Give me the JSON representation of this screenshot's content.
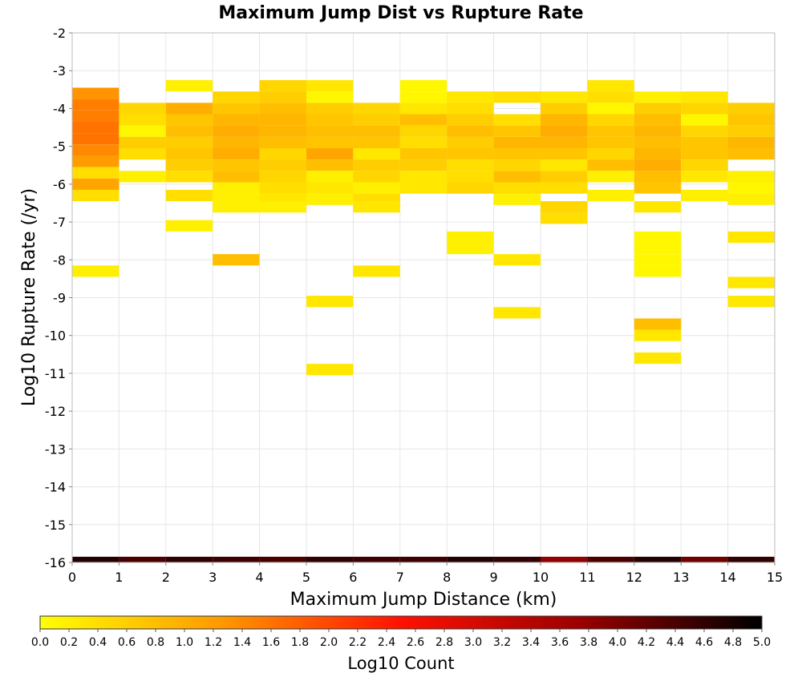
{
  "chart_data": {
    "type": "heatmap",
    "title": "Maximum Jump Dist vs Rupture Rate",
    "xlabel": "Maximum Jump Distance (km)",
    "ylabel": "Log10 Rupture Rate (/yr)",
    "xlim": [
      0,
      15
    ],
    "ylim": [
      -16,
      -2
    ],
    "x_ticks": [
      "0",
      "1",
      "2",
      "3",
      "4",
      "5",
      "6",
      "7",
      "8",
      "9",
      "10",
      "11",
      "12",
      "13",
      "14",
      "15"
    ],
    "y_ticks": [
      "-2",
      "-3",
      "-4",
      "-5",
      "-6",
      "-7",
      "-8",
      "-9",
      "-10",
      "-11",
      "-12",
      "-13",
      "-14",
      "-15",
      "-16"
    ],
    "grid": true,
    "colorbar": {
      "label": "Log10 Count",
      "min": 0.0,
      "max": 5.0,
      "ticks": [
        "0.0",
        "0.2",
        "0.4",
        "0.6",
        "0.8",
        "1.0",
        "1.2",
        "1.4",
        "1.6",
        "1.8",
        "2.0",
        "2.2",
        "2.4",
        "2.6",
        "2.8",
        "3.0",
        "3.2",
        "3.4",
        "3.6",
        "3.8",
        "4.0",
        "4.2",
        "4.4",
        "4.6",
        "4.8",
        "5.0"
      ],
      "colors": [
        "#ffff00",
        "#ff9900",
        "#ff1100",
        "#990000",
        "#000000"
      ],
      "placement": "bottom"
    },
    "y_bin_size": 0.3,
    "columns": [
      {
        "x": 0,
        "cells": [
          [
            -3.6,
            1.3
          ],
          [
            -3.9,
            1.5
          ],
          [
            -4.2,
            1.5
          ],
          [
            -4.5,
            1.6
          ],
          [
            -4.8,
            1.6
          ],
          [
            -5.1,
            1.4
          ],
          [
            -5.4,
            1.2
          ],
          [
            -5.7,
            0.4
          ],
          [
            -6.0,
            1.1
          ],
          [
            -6.3,
            0.4
          ],
          [
            -8.3,
            0.2
          ],
          [
            -16,
            4.7
          ]
        ]
      },
      {
        "x": 1,
        "cells": [
          [
            -4.0,
            0.5
          ],
          [
            -4.3,
            0.4
          ],
          [
            -4.6,
            0.1
          ],
          [
            -4.9,
            0.6
          ],
          [
            -5.2,
            0.4
          ],
          [
            -5.8,
            0.2
          ],
          [
            -16,
            4.4
          ]
        ]
      },
      {
        "x": 2,
        "cells": [
          [
            -3.4,
            0.2
          ],
          [
            -4.0,
            1.0
          ],
          [
            -4.3,
            0.7
          ],
          [
            -4.6,
            0.8
          ],
          [
            -4.9,
            0.6
          ],
          [
            -5.2,
            0.7
          ],
          [
            -5.5,
            0.6
          ],
          [
            -5.8,
            0.4
          ],
          [
            -6.3,
            0.4
          ],
          [
            -7.1,
            0.2
          ],
          [
            -16,
            4.6
          ]
        ]
      },
      {
        "x": 3,
        "cells": [
          [
            -3.7,
            0.5
          ],
          [
            -4.0,
            0.7
          ],
          [
            -4.3,
            0.9
          ],
          [
            -4.6,
            1.0
          ],
          [
            -4.9,
            0.9
          ],
          [
            -5.2,
            1.0
          ],
          [
            -5.5,
            0.7
          ],
          [
            -5.8,
            0.8
          ],
          [
            -6.1,
            0.2
          ],
          [
            -6.4,
            0.2
          ],
          [
            -6.6,
            0.2
          ],
          [
            -8.0,
            0.8
          ],
          [
            -16,
            4.5
          ]
        ]
      },
      {
        "x": 4,
        "cells": [
          [
            -3.4,
            0.5
          ],
          [
            -3.7,
            0.6
          ],
          [
            -4.0,
            0.8
          ],
          [
            -4.3,
            0.9
          ],
          [
            -4.6,
            0.9
          ],
          [
            -4.9,
            0.8
          ],
          [
            -5.2,
            0.5
          ],
          [
            -5.5,
            0.6
          ],
          [
            -5.8,
            0.5
          ],
          [
            -6.1,
            0.4
          ],
          [
            -6.4,
            0.3
          ],
          [
            -6.6,
            0.2
          ],
          [
            -16,
            4.4
          ]
        ]
      },
      {
        "x": 5,
        "cells": [
          [
            -3.4,
            0.3
          ],
          [
            -3.7,
            0.1
          ],
          [
            -4.0,
            0.6
          ],
          [
            -4.3,
            0.7
          ],
          [
            -4.6,
            0.8
          ],
          [
            -4.9,
            0.7
          ],
          [
            -5.2,
            1.1
          ],
          [
            -5.5,
            0.8
          ],
          [
            -5.8,
            0.2
          ],
          [
            -6.1,
            0.3
          ],
          [
            -6.4,
            0.2
          ],
          [
            -9.1,
            0.3
          ],
          [
            -10.9,
            0.3
          ],
          [
            -16,
            4.6
          ]
        ]
      },
      {
        "x": 6,
        "cells": [
          [
            -4.0,
            0.5
          ],
          [
            -4.3,
            0.6
          ],
          [
            -4.6,
            0.8
          ],
          [
            -4.9,
            0.7
          ],
          [
            -5.2,
            0.3
          ],
          [
            -5.5,
            0.6
          ],
          [
            -5.8,
            0.5
          ],
          [
            -6.1,
            0.2
          ],
          [
            -6.4,
            0.4
          ],
          [
            -6.6,
            0.3
          ],
          [
            -8.3,
            0.3
          ],
          [
            -16,
            4.5
          ]
        ]
      },
      {
        "x": 7,
        "cells": [
          [
            -3.4,
            0.1
          ],
          [
            -3.7,
            0.1
          ],
          [
            -4.0,
            0.3
          ],
          [
            -4.3,
            0.8
          ],
          [
            -4.6,
            0.5
          ],
          [
            -4.9,
            0.4
          ],
          [
            -5.2,
            0.7
          ],
          [
            -5.5,
            0.6
          ],
          [
            -5.8,
            0.3
          ],
          [
            -6.1,
            0.3
          ],
          [
            -16,
            4.5
          ]
        ]
      },
      {
        "x": 8,
        "cells": [
          [
            -3.7,
            0.3
          ],
          [
            -4.0,
            0.4
          ],
          [
            -4.3,
            0.6
          ],
          [
            -4.6,
            0.8
          ],
          [
            -4.9,
            0.6
          ],
          [
            -5.2,
            0.7
          ],
          [
            -5.5,
            0.4
          ],
          [
            -5.8,
            0.4
          ],
          [
            -6.1,
            0.5
          ],
          [
            -7.4,
            0.2
          ],
          [
            -7.7,
            0.2
          ],
          [
            -16,
            4.7
          ]
        ]
      },
      {
        "x": 9,
        "cells": [
          [
            -3.7,
            0.4
          ],
          [
            -4.3,
            0.4
          ],
          [
            -4.6,
            0.7
          ],
          [
            -4.9,
            0.9
          ],
          [
            -5.2,
            0.7
          ],
          [
            -5.5,
            0.5
          ],
          [
            -5.8,
            0.8
          ],
          [
            -6.1,
            0.4
          ],
          [
            -6.4,
            0.2
          ],
          [
            -8.0,
            0.3
          ],
          [
            -9.4,
            0.3
          ],
          [
            -16,
            4.6
          ]
        ]
      },
      {
        "x": 10,
        "cells": [
          [
            -3.7,
            0.3
          ],
          [
            -4.0,
            0.6
          ],
          [
            -4.3,
            0.9
          ],
          [
            -4.6,
            1.0
          ],
          [
            -4.9,
            0.9
          ],
          [
            -5.2,
            0.7
          ],
          [
            -5.5,
            0.3
          ],
          [
            -5.8,
            0.6
          ],
          [
            -6.1,
            0.4
          ],
          [
            -6.6,
            0.5
          ],
          [
            -6.9,
            0.4
          ],
          [
            -16,
            3.8
          ]
        ]
      },
      {
        "x": 11,
        "cells": [
          [
            -3.4,
            0.3
          ],
          [
            -3.7,
            0.4
          ],
          [
            -4.0,
            0.1
          ],
          [
            -4.3,
            0.5
          ],
          [
            -4.6,
            0.7
          ],
          [
            -4.9,
            0.7
          ],
          [
            -5.2,
            0.5
          ],
          [
            -5.5,
            0.8
          ],
          [
            -5.8,
            0.2
          ],
          [
            -6.3,
            0.2
          ],
          [
            -16,
            4.4
          ]
        ]
      },
      {
        "x": 12,
        "cells": [
          [
            -3.7,
            0.2
          ],
          [
            -4.0,
            0.6
          ],
          [
            -4.3,
            0.8
          ],
          [
            -4.6,
            0.9
          ],
          [
            -4.9,
            0.8
          ],
          [
            -5.2,
            0.9
          ],
          [
            -5.5,
            1.0
          ],
          [
            -5.8,
            0.8
          ],
          [
            -6.1,
            0.7
          ],
          [
            -6.6,
            0.3
          ],
          [
            -7.4,
            0.1
          ],
          [
            -7.7,
            0.1
          ],
          [
            -8.0,
            0.1
          ],
          [
            -8.3,
            0.1
          ],
          [
            -9.7,
            0.8
          ],
          [
            -10.0,
            0.3
          ],
          [
            -10.6,
            0.3
          ],
          [
            -16,
            4.7
          ]
        ]
      },
      {
        "x": 13,
        "cells": [
          [
            -3.7,
            0.3
          ],
          [
            -4.0,
            0.5
          ],
          [
            -4.3,
            0.1
          ],
          [
            -4.6,
            0.5
          ],
          [
            -4.9,
            0.7
          ],
          [
            -5.2,
            0.7
          ],
          [
            -5.5,
            0.5
          ],
          [
            -5.8,
            0.3
          ],
          [
            -6.3,
            0.2
          ],
          [
            -16,
            4.1
          ]
        ]
      },
      {
        "x": 14,
        "cells": [
          [
            -4.0,
            0.6
          ],
          [
            -4.3,
            0.7
          ],
          [
            -4.6,
            0.6
          ],
          [
            -4.9,
            0.9
          ],
          [
            -5.2,
            0.8
          ],
          [
            -5.8,
            0.2
          ],
          [
            -6.1,
            0.1
          ],
          [
            -6.4,
            0.2
          ],
          [
            -7.4,
            0.3
          ],
          [
            -8.6,
            0.3
          ],
          [
            -9.1,
            0.3
          ],
          [
            -16,
            4.6
          ]
        ]
      }
    ]
  }
}
